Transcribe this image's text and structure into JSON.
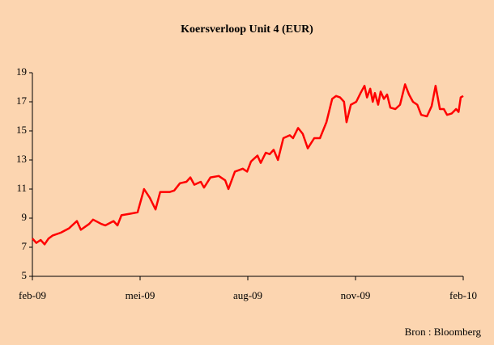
{
  "chart_data": {
    "type": "line",
    "title": "Koersverloop Unit 4 (EUR)",
    "annotation": "Bron : Bloomberg",
    "xlim": [
      0,
      12
    ],
    "xticks": [
      {
        "value": 0,
        "label": "feb-09"
      },
      {
        "value": 3,
        "label": "mei-09"
      },
      {
        "value": 6,
        "label": "aug-09"
      },
      {
        "value": 9,
        "label": "nov-09"
      },
      {
        "value": 12,
        "label": "feb-10"
      }
    ],
    "ylim": [
      5,
      19
    ],
    "yticks": [
      5,
      7,
      9,
      11,
      13,
      15,
      17,
      19
    ],
    "grid": false,
    "series": [
      {
        "name": "Unit 4",
        "color": "#ff0000",
        "x": [
          0,
          0.11,
          0.23,
          0.34,
          0.45,
          0.56,
          0.79,
          1.02,
          1.24,
          1.35,
          1.58,
          1.69,
          1.92,
          2.03,
          2.26,
          2.37,
          2.48,
          2.71,
          2.93,
          3.11,
          3.27,
          3.43,
          3.56,
          3.83,
          3.95,
          4.11,
          4.29,
          4.4,
          4.51,
          4.69,
          4.78,
          4.96,
          5.19,
          5.37,
          5.46,
          5.64,
          5.86,
          5.98,
          6.09,
          6.27,
          6.36,
          6.5,
          6.61,
          6.72,
          6.84,
          6.99,
          7.17,
          7.26,
          7.4,
          7.53,
          7.67,
          7.85,
          8.01,
          8.19,
          8.35,
          8.46,
          8.57,
          8.68,
          8.75,
          8.87,
          9.02,
          9.14,
          9.25,
          9.32,
          9.41,
          9.48,
          9.54,
          9.63,
          9.7,
          9.79,
          9.88,
          9.97,
          10.11,
          10.24,
          10.38,
          10.49,
          10.6,
          10.72,
          10.83,
          10.99,
          11.12,
          11.23,
          11.35,
          11.46,
          11.55,
          11.68,
          11.8,
          11.87,
          11.93,
          12
        ],
        "values": [
          7.6,
          7.3,
          7.5,
          7.2,
          7.6,
          7.8,
          8.0,
          8.3,
          8.8,
          8.2,
          8.6,
          8.9,
          8.6,
          8.5,
          8.8,
          8.5,
          9.2,
          9.3,
          9.4,
          11.0,
          10.4,
          9.6,
          10.8,
          10.8,
          10.9,
          11.4,
          11.5,
          11.8,
          11.3,
          11.5,
          11.1,
          11.8,
          11.9,
          11.6,
          11.0,
          12.2,
          12.4,
          12.2,
          12.9,
          13.3,
          12.8,
          13.5,
          13.4,
          13.7,
          13.0,
          14.5,
          14.7,
          14.5,
          15.2,
          14.8,
          13.8,
          14.5,
          14.5,
          15.6,
          17.2,
          17.4,
          17.3,
          17.0,
          15.6,
          16.8,
          17.0,
          17.6,
          18.1,
          17.3,
          17.9,
          17.0,
          17.6,
          16.8,
          17.7,
          17.2,
          17.5,
          16.6,
          16.5,
          16.8,
          18.2,
          17.5,
          17.0,
          16.8,
          16.1,
          16.0,
          16.7,
          18.1,
          16.5,
          16.5,
          16.1,
          16.2,
          16.5,
          16.3,
          17.3,
          17.4
        ]
      }
    ]
  }
}
